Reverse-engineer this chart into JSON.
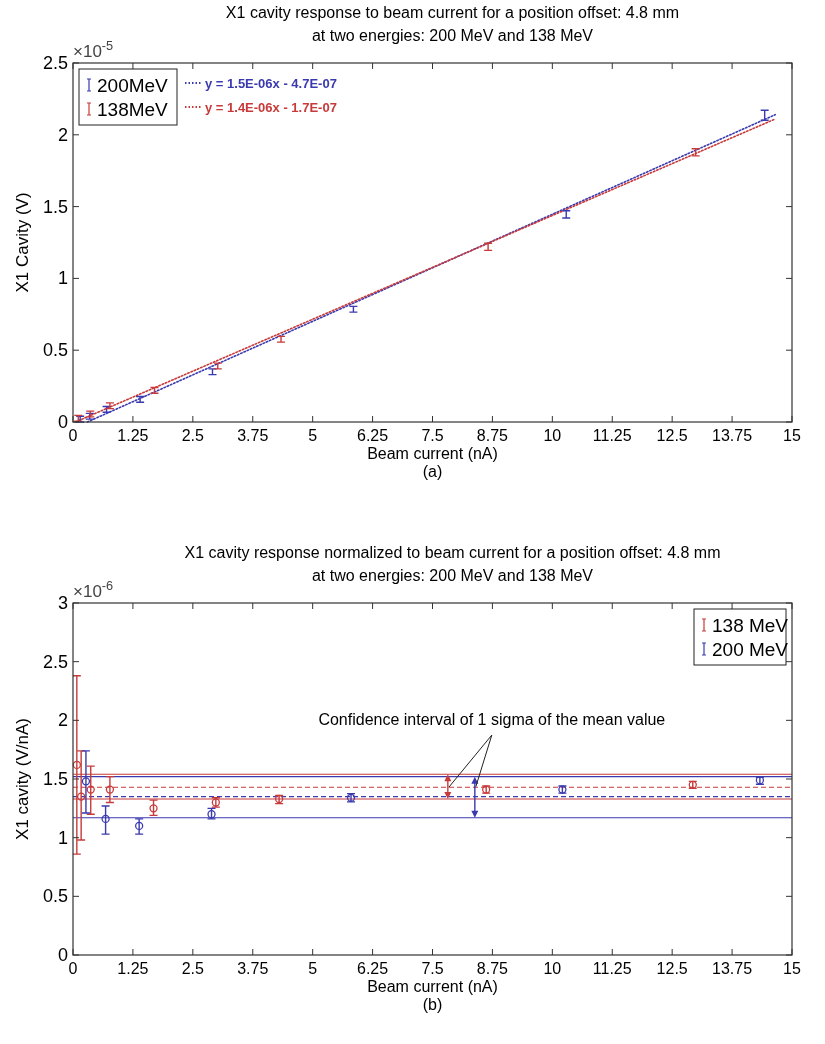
{
  "chart_data": [
    {
      "type": "scatter",
      "title": "X1 cavity response to beam current for a position offset: 4.8 mm",
      "subtitle": "at two energies: 200 MeV and 138 MeV",
      "xlabel": "Beam current (nA)",
      "ylabel": "X1 Cavity (V)",
      "annotations": [
        "×10$^{-5}$",
        "(a)"
      ],
      "xlim": [
        0,
        15
      ],
      "xticks": [
        0,
        1.25,
        2.5,
        3.75,
        5,
        6.25,
        7.5,
        8.75,
        10,
        11.25,
        12.5,
        13.75,
        15
      ],
      "ylim": [
        0,
        2.5
      ],
      "yticks": [
        0,
        0.5,
        1,
        1.5,
        2,
        2.5
      ],
      "legend": "top left",
      "grid": false,
      "series": [
        {
          "name": "200MeV",
          "color": "#3a3ab0",
          "x": [
            0.15,
            0.35,
            0.7,
            1.4,
            2.91,
            5.85,
            10.29,
            14.43
          ],
          "values": [
            0.02,
            0.04,
            0.088,
            0.158,
            0.35,
            0.785,
            1.446,
            2.136
          ],
          "errors": [
            0.02,
            0.02,
            0.02,
            0.02,
            0.02,
            0.02,
            0.025,
            0.035
          ]
        },
        {
          "name": "138MeV",
          "color": "#c83a3a",
          "x": [
            0.11,
            0.36,
            0.77,
            1.7,
            3.02,
            4.34,
            8.66,
            12.99
          ],
          "values": [
            0.026,
            0.056,
            0.113,
            0.22,
            0.39,
            0.576,
            1.22,
            1.878
          ],
          "errors": [
            0.02,
            0.02,
            0.02,
            0.02,
            0.02,
            0.02,
            0.025,
            0.025
          ]
        },
        {
          "name": "y = 1.5E-06x - 4.7E-07",
          "type": "line",
          "line_style": "dotted",
          "color": "#3a3ab0",
          "x": [
            0.3,
            14.65
          ],
          "values": [
            0,
            2.14
          ]
        },
        {
          "name": "y = 1.4E-06x - 1.7E-07",
          "type": "line",
          "line_style": "dotted",
          "color": "#c83a3a",
          "x": [
            0.05,
            14.65
          ],
          "values": [
            0,
            2.11
          ]
        }
      ]
    },
    {
      "type": "scatter",
      "title": "X1 cavity response normalized to beam current for a position offset: 4.8 mm",
      "subtitle": "at two energies: 200 MeV and 138 MeV",
      "xlabel": "Beam current (nA)",
      "ylabel": "X1 cavity  (V/nA)",
      "annotations": [
        "×10$^{-6}$",
        "(b)",
        {
          "text": "Confidence interval of 1 sigma of the mean value",
          "x": 7.82,
          "y": 1.43
        }
      ],
      "xlim": [
        0,
        15
      ],
      "xticks": [
        0,
        1.25,
        2.5,
        3.75,
        5,
        6.25,
        7.5,
        8.75,
        10,
        11.25,
        12.5,
        13.75,
        15
      ],
      "ylim": [
        0,
        3
      ],
      "yticks": [
        0,
        0.5,
        1,
        1.5,
        2,
        2.5,
        3
      ],
      "legend": "top right",
      "marker": "circle",
      "grid": false,
      "series": [
        {
          "name": "138 MeV",
          "color": "#c83a3a",
          "x": [
            0.08,
            0.17,
            0.37,
            0.77,
            1.68,
            2.98,
            4.3,
            8.62,
            12.93
          ],
          "values": [
            1.62,
            1.35,
            1.41,
            1.41,
            1.25,
            1.3,
            1.33,
            1.41,
            1.45
          ],
          "errors": [
            [
              0.86,
              2.38
            ],
            [
              0.98,
              1.74
            ],
            [
              1.2,
              1.61
            ],
            [
              1.3,
              1.52
            ],
            [
              1.19,
              1.32
            ],
            [
              1.26,
              1.34
            ],
            [
              1.29,
              1.36
            ],
            [
              1.38,
              1.44
            ],
            [
              1.42,
              1.48
            ]
          ]
        },
        {
          "name": "200 MeV",
          "color": "#3a3ab0",
          "x": [
            0.27,
            0.68,
            1.38,
            2.89,
            5.8,
            10.21,
            14.33
          ],
          "values": [
            1.48,
            1.16,
            1.1,
            1.2,
            1.34,
            1.41,
            1.49
          ],
          "errors": [
            [
              1.21,
              1.74
            ],
            [
              1.03,
              1.27
            ],
            [
              1.03,
              1.16
            ],
            [
              1.16,
              1.25
            ],
            [
              1.305,
              1.375
            ],
            [
              1.38,
              1.44
            ],
            [
              1.455,
              1.515
            ]
          ]
        }
      ],
      "ref_lines": [
        {
          "axis": "y",
          "value": 1.54,
          "color": "#c83a3a",
          "line_style": "solid"
        },
        {
          "axis": "y",
          "value": 1.33,
          "color": "#c83a3a",
          "line_style": "solid"
        },
        {
          "axis": "y",
          "value": 1.52,
          "color": "#3a3ab0",
          "line_style": "solid"
        },
        {
          "axis": "y",
          "value": 1.17,
          "color": "#3a3ab0",
          "line_style": "solid"
        },
        {
          "axis": "y",
          "value": 1.43,
          "color": "#c83a3a",
          "line_style": "dashed"
        },
        {
          "axis": "y",
          "value": 1.35,
          "color": "#3a3ab0",
          "line_style": "dashed"
        }
      ]
    }
  ]
}
